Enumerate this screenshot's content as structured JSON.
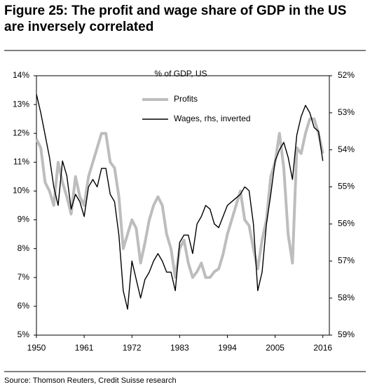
{
  "chart_data": {
    "type": "line",
    "title": "Figure 25: The profit and wage share of GDP in the US are inversely correlated",
    "annotation": "% of GDP, US",
    "source": "Source: Thomson Reuters, Credit Suisse research",
    "x": [
      1950,
      1951,
      1952,
      1953,
      1954,
      1955,
      1956,
      1957,
      1958,
      1959,
      1960,
      1961,
      1962,
      1963,
      1964,
      1965,
      1966,
      1967,
      1968,
      1969,
      1970,
      1971,
      1972,
      1973,
      1974,
      1975,
      1976,
      1977,
      1978,
      1979,
      1980,
      1981,
      1982,
      1983,
      1984,
      1985,
      1986,
      1987,
      1988,
      1989,
      1990,
      1991,
      1992,
      1993,
      1994,
      1995,
      1996,
      1997,
      1998,
      1999,
      2000,
      2001,
      2002,
      2003,
      2004,
      2005,
      2006,
      2007,
      2008,
      2009,
      2010,
      2011,
      2012,
      2013,
      2014,
      2015,
      2016
    ],
    "series": [
      {
        "name": "Profits",
        "color": "#bdbdbd",
        "axis": "y",
        "values": [
          11.8,
          11.5,
          10.3,
          10.0,
          9.5,
          11.0,
          10.3,
          9.8,
          9.2,
          10.5,
          9.8,
          9.5,
          10.5,
          11.0,
          11.5,
          12.0,
          12.0,
          11.0,
          10.8,
          9.8,
          8.0,
          8.5,
          9.0,
          8.7,
          7.5,
          8.2,
          9.0,
          9.5,
          9.8,
          9.5,
          8.5,
          8.0,
          7.0,
          8.0,
          8.3,
          7.5,
          7.0,
          7.2,
          7.5,
          7.0,
          7.0,
          7.2,
          7.3,
          7.8,
          8.5,
          9.0,
          9.5,
          10.0,
          9.0,
          8.8,
          8.0,
          7.3,
          8.3,
          9.0,
          10.5,
          11.0,
          12.0,
          10.8,
          8.5,
          7.5,
          11.5,
          11.3,
          12.0,
          12.5,
          12.5,
          12.0,
          11.3
        ]
      },
      {
        "name": "Wages, rhs, inverted",
        "color": "#000000",
        "axis": "y2",
        "values": [
          52.5,
          53.0,
          53.6,
          54.2,
          55.0,
          55.5,
          54.3,
          54.7,
          55.6,
          55.2,
          55.4,
          55.8,
          55.0,
          54.8,
          55.0,
          54.5,
          54.5,
          55.2,
          55.4,
          56.3,
          57.8,
          58.3,
          57.0,
          57.5,
          58.0,
          57.5,
          57.3,
          57.0,
          56.8,
          57.0,
          57.3,
          57.3,
          57.8,
          56.5,
          56.3,
          56.3,
          56.8,
          56.0,
          55.8,
          55.5,
          55.6,
          56.0,
          56.1,
          55.8,
          55.5,
          55.4,
          55.3,
          55.2,
          55.0,
          55.1,
          56.0,
          57.8,
          57.3,
          56.0,
          55.2,
          54.3,
          54.0,
          53.8,
          54.2,
          54.8,
          53.6,
          53.1,
          52.8,
          53.0,
          53.4,
          53.5,
          54.3
        ]
      }
    ],
    "xlim": [
      1950,
      2017.5
    ],
    "xticks": [
      1950,
      1961,
      1972,
      1983,
      1994,
      2005,
      2016
    ],
    "ylim": [
      5,
      14
    ],
    "yticks": [
      {
        "value": 5,
        "label": "5%"
      },
      {
        "value": 6,
        "label": "6%"
      },
      {
        "value": 7,
        "label": "7%"
      },
      {
        "value": 8,
        "label": "8%"
      },
      {
        "value": 9,
        "label": "9%"
      },
      {
        "value": 10,
        "label": "10%"
      },
      {
        "value": 11,
        "label": "11%"
      },
      {
        "value": 12,
        "label": "12%"
      },
      {
        "value": 13,
        "label": "13%"
      },
      {
        "value": 14,
        "label": "14%"
      }
    ],
    "y2lim": [
      52,
      59
    ],
    "y2_inverted": true,
    "y2ticks": [
      {
        "value": 52,
        "label": "52%"
      },
      {
        "value": 53,
        "label": "53%"
      },
      {
        "value": 54,
        "label": "54%"
      },
      {
        "value": 55,
        "label": "55%"
      },
      {
        "value": 56,
        "label": "56%"
      },
      {
        "value": 57,
        "label": "57%"
      },
      {
        "value": 58,
        "label": "58%"
      },
      {
        "value": 59,
        "label": "59%"
      }
    ]
  }
}
